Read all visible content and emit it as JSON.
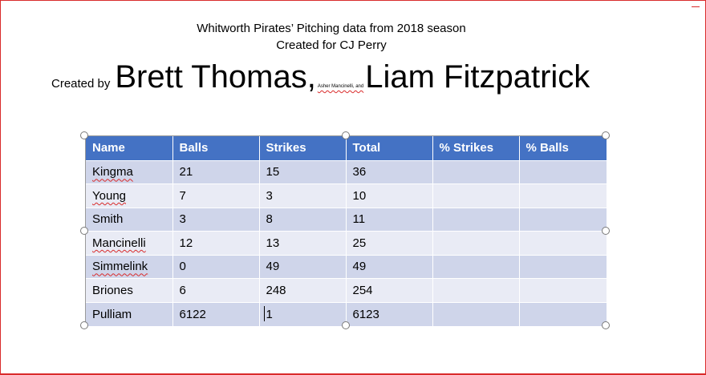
{
  "header": {
    "title_line1": "Whitworth Pirates’ Pitching data from 2018 season",
    "title_line2": "Created for CJ Perry"
  },
  "byline": {
    "prefix": "Created by",
    "author1": "Brett Thomas,",
    "author_small": "Asher Mancinelli, and",
    "author2": "Liam Fitzpatrick"
  },
  "table": {
    "columns": [
      "Name",
      "Balls",
      "Strikes",
      "Total",
      "% Strikes",
      "% Balls"
    ],
    "rows": [
      {
        "name": "Kingma",
        "balls": "21",
        "strikes": "15",
        "total": "36",
        "pct_strikes": "",
        "pct_balls": ""
      },
      {
        "name": "Young",
        "balls": "7",
        "strikes": "3",
        "total": "10",
        "pct_strikes": "",
        "pct_balls": ""
      },
      {
        "name": "Smith",
        "balls": "3",
        "strikes": "8",
        "total": "11",
        "pct_strikes": "",
        "pct_balls": ""
      },
      {
        "name": "Mancinelli",
        "balls": "12",
        "strikes": "13",
        "total": "25",
        "pct_strikes": "",
        "pct_balls": ""
      },
      {
        "name": "Simmelink",
        "balls": "0",
        "strikes": "49",
        "total": "49",
        "pct_strikes": "",
        "pct_balls": ""
      },
      {
        "name": "Briones",
        "balls": "6",
        "strikes": "248",
        "total": "254",
        "pct_strikes": "",
        "pct_balls": ""
      },
      {
        "name": "Pulliam",
        "balls": "6122",
        "strikes": "1",
        "total": "6123",
        "pct_strikes": "",
        "pct_balls": ""
      }
    ]
  },
  "colors": {
    "header_bg": "#4472c4",
    "row_odd": "#cfd5ea",
    "row_even": "#e9ebf5",
    "frame_border": "#d92b2b"
  }
}
